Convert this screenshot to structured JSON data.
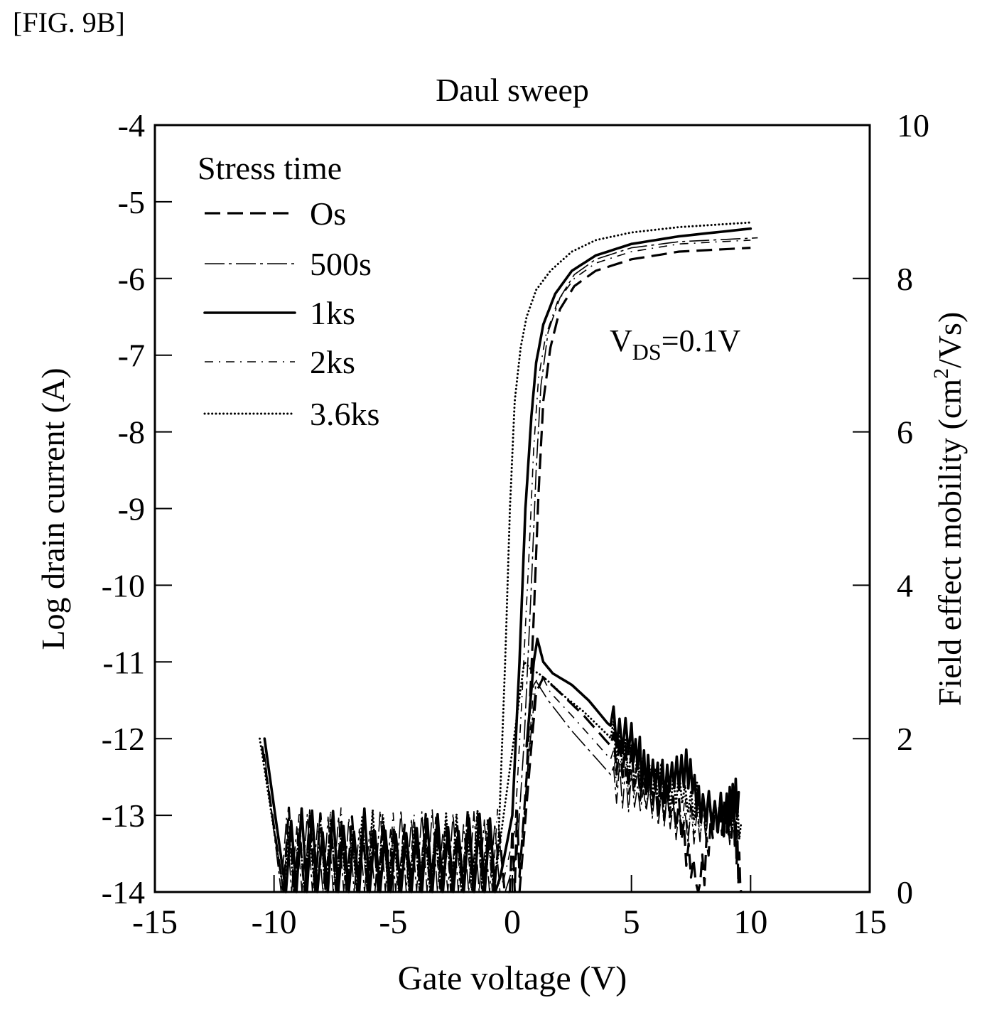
{
  "figure_label": "[FIG. 9B]",
  "chart_data": {
    "type": "line",
    "title": "Daul sweep",
    "xlabel": "Gate voltage (V)",
    "ylabel": "Log drain current (A)",
    "y2label_main": "Field effect mobility (cm",
    "y2label_sup": "2",
    "y2label_tail": "/Vs)",
    "xlim": [
      -15,
      15
    ],
    "ylim": [
      -14,
      -4
    ],
    "y2lim": [
      0,
      10
    ],
    "xticks": [
      "-15",
      "-10",
      "-5",
      "0",
      "5",
      "10",
      "15"
    ],
    "xtick_values": [
      -15,
      -10,
      -5,
      0,
      5,
      10,
      15
    ],
    "yticks": [
      "-4",
      "-5",
      "-6",
      "-7",
      "-8",
      "-9",
      "-10",
      "-11",
      "-12",
      "-13",
      "-14"
    ],
    "ytick_values": [
      -4,
      -5,
      -6,
      -7,
      -8,
      -9,
      -10,
      -11,
      -12,
      -13,
      -14
    ],
    "y2ticks": [
      "10",
      "8",
      "6",
      "4",
      "2",
      "0"
    ],
    "y2tick_values": [
      10,
      8,
      6,
      4,
      2,
      0
    ],
    "grid": false,
    "legend": {
      "title": "Stress time",
      "position": "top-left",
      "entries": [
        "Os",
        "500s",
        "1ks",
        "2ks",
        "3.6ks"
      ]
    },
    "annotation": {
      "main": "V",
      "sub": "DS",
      "tail": "=0.1V"
    },
    "series": [
      {
        "name": "Os",
        "style": "dashed",
        "transfer": {
          "x": [
            -10.5,
            -9.6,
            -0.1,
            0.3,
            0.6,
            0.9,
            1.1,
            1.3,
            1.6,
            2.0,
            2.6,
            3.5,
            5.0,
            7.0,
            10.0
          ],
          "y": [
            -12.1,
            -14.0,
            -14.0,
            -13.8,
            -12.5,
            -10.4,
            -8.8,
            -7.6,
            -6.9,
            -6.4,
            -6.1,
            -5.9,
            -5.75,
            -5.65,
            -5.6
          ]
        },
        "mobility": {
          "x": [
            0.3,
            0.8,
            1.0,
            1.3,
            2.0,
            3.0,
            4.0,
            5.0,
            6.0,
            7.0,
            7.8,
            8.5,
            9.3,
            9.6
          ],
          "y": [
            0.0,
            1.9,
            2.6,
            2.8,
            2.6,
            2.3,
            1.95,
            1.6,
            1.3,
            1.0,
            0.0,
            1.0,
            0.9,
            0.0
          ]
        }
      },
      {
        "name": "500s",
        "style": "dashdot-long",
        "transfer": {
          "x": [
            -10.4,
            -9.7,
            -0.3,
            0.2,
            0.5,
            0.8,
            1.0,
            1.2,
            1.5,
            2.0,
            2.6,
            3.5,
            5.0,
            7.0,
            10.3
          ],
          "y": [
            -12.2,
            -14.0,
            -14.0,
            -13.5,
            -12.0,
            -10.0,
            -8.5,
            -7.4,
            -6.7,
            -6.25,
            -5.95,
            -5.75,
            -5.6,
            -5.52,
            -5.47
          ]
        },
        "mobility": {
          "x": [
            0.3,
            0.7,
            1.0,
            1.5,
            2.5,
            3.5,
            4.5,
            5.5,
            6.5,
            7.5,
            8.5,
            9.5
          ],
          "y": [
            0.3,
            1.8,
            2.75,
            2.5,
            2.1,
            1.75,
            1.4,
            1.2,
            1.0,
            0.9,
            1.0,
            0.8
          ]
        }
      },
      {
        "name": "1ks",
        "style": "solid-thick",
        "transfer": {
          "x": [
            -10.4,
            -9.5,
            -0.5,
            0.0,
            0.3,
            0.55,
            0.8,
            1.0,
            1.3,
            1.8,
            2.5,
            3.5,
            5.0,
            7.0,
            10.0
          ],
          "y": [
            -12.0,
            -14.0,
            -13.8,
            -13.0,
            -11.0,
            -9.0,
            -7.8,
            -7.1,
            -6.6,
            -6.2,
            -5.9,
            -5.7,
            -5.55,
            -5.45,
            -5.35
          ]
        },
        "mobility": {
          "x": [
            0.6,
            0.9,
            1.05,
            1.3,
            1.7,
            2.5,
            3.2,
            4.0,
            5.0,
            5.7,
            6.5,
            7.3,
            8.0,
            9.0,
            9.5
          ],
          "y": [
            1.9,
            3.0,
            3.3,
            3.0,
            2.85,
            2.7,
            2.5,
            2.2,
            1.95,
            1.5,
            1.45,
            1.6,
            1.1,
            1.0,
            1.3
          ]
        }
      },
      {
        "name": "2ks",
        "style": "dashdot-short",
        "transfer": {
          "x": [
            -10.5,
            -9.6,
            -0.4,
            0.1,
            0.4,
            0.7,
            0.9,
            1.1,
            1.4,
            1.9,
            2.6,
            3.5,
            5.0,
            7.0,
            10.0
          ],
          "y": [
            -12.1,
            -14.0,
            -13.9,
            -13.2,
            -11.5,
            -9.6,
            -8.2,
            -7.3,
            -6.75,
            -6.3,
            -6.0,
            -5.8,
            -5.65,
            -5.55,
            -5.5
          ]
        },
        "mobility": {
          "x": [
            0.5,
            0.9,
            1.2,
            1.6,
            2.5,
            3.5,
            4.5,
            5.5,
            6.5,
            7.5,
            8.5,
            9.5
          ],
          "y": [
            1.0,
            2.7,
            2.85,
            2.6,
            2.3,
            1.95,
            1.6,
            1.3,
            1.1,
            0.95,
            1.0,
            0.9
          ]
        }
      },
      {
        "name": "3.6ks",
        "style": "dotted",
        "transfer": {
          "x": [
            -10.6,
            -9.6,
            -0.8,
            -0.6,
            -0.3,
            -0.1,
            0.1,
            0.35,
            0.6,
            1.0,
            1.6,
            2.5,
            3.5,
            5.0,
            7.0,
            10.0
          ],
          "y": [
            -12.0,
            -14.0,
            -13.9,
            -13.5,
            -11.0,
            -9.0,
            -7.6,
            -6.9,
            -6.5,
            -6.15,
            -5.9,
            -5.65,
            -5.5,
            -5.4,
            -5.33,
            -5.27
          ]
        },
        "mobility": {
          "x": [
            -0.8,
            0.5,
            0.8,
            1.1,
            1.5,
            2.2,
            3.0,
            4.0,
            5.0,
            6.0,
            7.0,
            8.0,
            9.0,
            9.6
          ],
          "y": [
            0.0,
            3.0,
            2.9,
            2.85,
            2.75,
            2.55,
            2.35,
            2.05,
            1.7,
            1.45,
            1.3,
            1.1,
            1.0,
            0.9
          ]
        }
      }
    ]
  }
}
